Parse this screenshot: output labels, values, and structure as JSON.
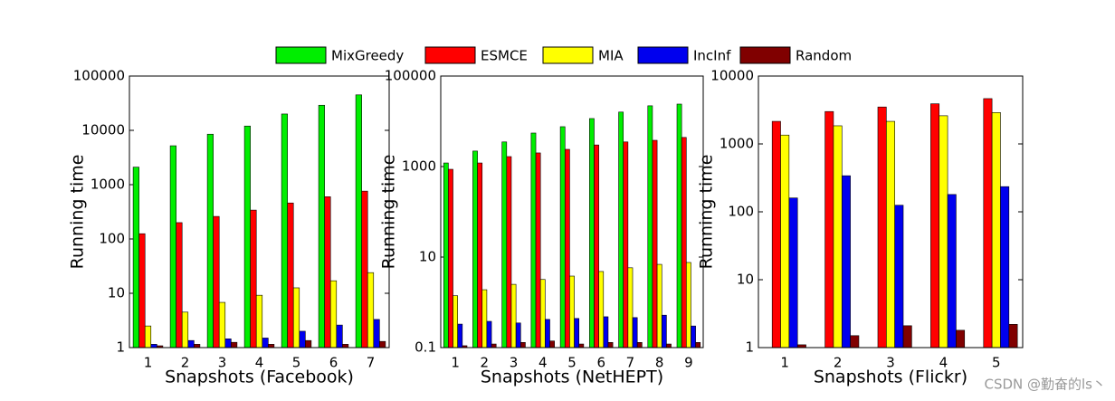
{
  "chart_data": [
    {
      "type": "bar",
      "log": true,
      "xlabel": "Snapshots (Facebook)",
      "ylabel": "Running time",
      "categories": [
        "1",
        "2",
        "3",
        "4",
        "5",
        "6",
        "7"
      ],
      "ylim": [
        1,
        100000
      ],
      "yticks": [
        1,
        10,
        100,
        1000,
        10000,
        100000
      ],
      "series": [
        {
          "name": "MixGreedy",
          "color": "#00ee00",
          "values": [
            2100,
            5200,
            8500,
            12000,
            20000,
            29000,
            45000
          ]
        },
        {
          "name": "ESMCE",
          "color": "#ff0000",
          "values": [
            125,
            200,
            260,
            340,
            460,
            600,
            760
          ]
        },
        {
          "name": "MIA",
          "color": "#ffff00",
          "values": [
            2.5,
            4.5,
            6.8,
            9.2,
            12.6,
            17,
            24
          ]
        },
        {
          "name": "IncInf",
          "color": "#0000ee",
          "values": [
            1.15,
            1.35,
            1.45,
            1.5,
            2,
            2.6,
            3.3
          ]
        },
        {
          "name": "Random",
          "color": "#800000",
          "values": [
            1.08,
            1.15,
            1.25,
            1.15,
            1.35,
            1.15,
            1.3
          ]
        }
      ]
    },
    {
      "type": "bar",
      "log": true,
      "xlabel": "Snapshots (NetHEPT)",
      "ylabel": "Running time",
      "categories": [
        "1",
        "2",
        "3",
        "4",
        "5",
        "6",
        "7",
        "8",
        "9"
      ],
      "ylim": [
        0.1,
        100000
      ],
      "yticks": [
        0.1,
        10,
        1000,
        100000
      ],
      "series": [
        {
          "color": "#00ee00",
          "values": [
            1200,
            2200,
            3500,
            5500,
            7600,
            11500,
            16000,
            22000,
            24000
          ]
        },
        {
          "color": "#ff0000",
          "values": [
            870,
            1200,
            1660,
            2000,
            2400,
            3000,
            3500,
            3800,
            4400
          ]
        },
        {
          "color": "#ffff00",
          "values": [
            1.4,
            1.9,
            2.5,
            3.2,
            3.8,
            4.8,
            5.8,
            6.9,
            7.6
          ]
        },
        {
          "color": "#0000ee",
          "values": [
            0.33,
            0.38,
            0.35,
            0.42,
            0.44,
            0.48,
            0.46,
            0.52,
            0.3
          ]
        },
        {
          "color": "#800000",
          "values": [
            0.11,
            0.12,
            0.13,
            0.14,
            0.12,
            0.13,
            0.13,
            0.12,
            0.13
          ]
        }
      ]
    },
    {
      "type": "bar",
      "log": true,
      "xlabel": "Snapshots (Flickr)",
      "ylabel": "Running time",
      "categories": [
        "1",
        "2",
        "3",
        "4",
        "5"
      ],
      "ylim": [
        1,
        10000
      ],
      "yticks": [
        1,
        10,
        100,
        1000,
        10000
      ],
      "series": [
        {
          "color": "#00ee00",
          "values": [
            null,
            null,
            null,
            null,
            null
          ]
        },
        {
          "color": "#ff0000",
          "values": [
            2150,
            3000,
            3500,
            3900,
            4650
          ]
        },
        {
          "color": "#ffff00",
          "values": [
            1350,
            1850,
            2150,
            2600,
            2900
          ]
        },
        {
          "color": "#0000ee",
          "values": [
            160,
            340,
            125,
            180,
            235
          ]
        },
        {
          "color": "#800000",
          "values": [
            1.1,
            1.5,
            2.1,
            1.8,
            2.2
          ]
        }
      ]
    }
  ],
  "watermark": "CSDN @勤奋的ls丶"
}
